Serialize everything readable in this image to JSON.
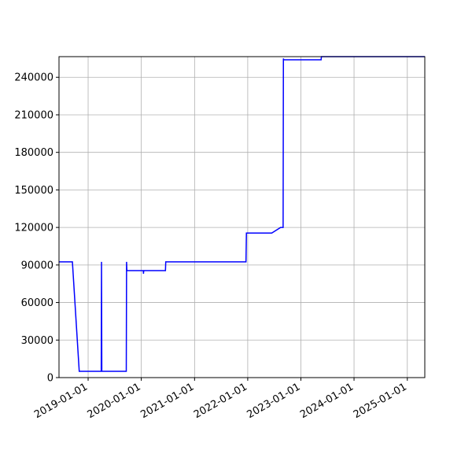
{
  "chart_data": {
    "type": "line",
    "title": "",
    "xlabel": "",
    "ylabel": "",
    "x_type": "date",
    "xlim": [
      "2018-06-15",
      "2025-05-01"
    ],
    "ylim": [
      0,
      256500
    ],
    "grid": true,
    "x_ticks": [
      "2019-01-01",
      "2020-01-01",
      "2021-01-01",
      "2022-01-01",
      "2023-01-01",
      "2024-01-01",
      "2025-01-01"
    ],
    "x_tick_labels": [
      "2019-01-01",
      "2020-01-01",
      "2021-01-01",
      "2022-01-01",
      "2023-01-01",
      "2024-01-01",
      "2025-01-01"
    ],
    "y_ticks": [
      0,
      30000,
      60000,
      90000,
      120000,
      150000,
      180000,
      210000,
      240000
    ],
    "y_tick_labels": [
      "0",
      "30000",
      "60000",
      "90000",
      "120000",
      "150000",
      "180000",
      "210000",
      "240000"
    ],
    "series": [
      {
        "color": "#0000ff",
        "points": [
          [
            "2018-06-15",
            92500
          ],
          [
            "2018-09-15",
            92500
          ],
          [
            "2018-11-01",
            5000
          ],
          [
            "2019-04-01",
            5000
          ],
          [
            "2019-04-03",
            92500
          ],
          [
            "2019-04-05",
            5000
          ],
          [
            "2019-09-20",
            5000
          ],
          [
            "2019-09-22",
            92500
          ],
          [
            "2019-09-24",
            85500
          ],
          [
            "2020-01-15",
            85500
          ],
          [
            "2020-01-16",
            83000
          ],
          [
            "2020-01-18",
            85500
          ],
          [
            "2020-06-15",
            85500
          ],
          [
            "2020-06-17",
            92500
          ],
          [
            "2021-12-20",
            92500
          ],
          [
            "2021-12-23",
            115500
          ],
          [
            "2022-06-15",
            115500
          ],
          [
            "2022-08-15",
            120000
          ],
          [
            "2022-09-01",
            120000
          ],
          [
            "2022-09-03",
            255000
          ],
          [
            "2022-09-05",
            254000
          ],
          [
            "2023-05-20",
            254000
          ],
          [
            "2023-05-22",
            256500
          ],
          [
            "2025-05-01",
            256500
          ]
        ]
      }
    ]
  }
}
